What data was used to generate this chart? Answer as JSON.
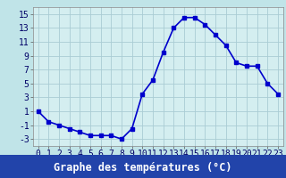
{
  "x": [
    0,
    1,
    2,
    3,
    4,
    5,
    6,
    7,
    8,
    9,
    10,
    11,
    12,
    13,
    14,
    15,
    16,
    17,
    18,
    19,
    20,
    21,
    22,
    23
  ],
  "y": [
    1,
    -0.5,
    -1,
    -1.5,
    -2,
    -2.5,
    -2.5,
    -2.5,
    -3,
    -1.5,
    3.5,
    5.5,
    9.5,
    13,
    14.5,
    14.5,
    13.5,
    12,
    10.5,
    8,
    7.5,
    7.5,
    5,
    3.5
  ],
  "xlabel": "Graphe des températures (°C)",
  "xlim_min": -0.5,
  "xlim_max": 23.5,
  "ylim": [
    -4,
    16
  ],
  "yticks": [
    -3,
    -1,
    1,
    3,
    5,
    7,
    9,
    11,
    13,
    15
  ],
  "xticks": [
    0,
    1,
    2,
    3,
    4,
    5,
    6,
    7,
    8,
    9,
    10,
    11,
    12,
    13,
    14,
    15,
    16,
    17,
    18,
    19,
    20,
    21,
    22,
    23
  ],
  "line_color": "#0000cc",
  "marker": "s",
  "marker_size": 2.5,
  "bg_plot": "#d4eef0",
  "bg_fig": "#c0e4e8",
  "grid_color": "#aaccd4",
  "xlabel_bg": "#2244aa",
  "xlabel_color": "#ffffff",
  "xlabel_fontsize": 8.5,
  "tick_fontsize": 7,
  "line_width": 1.2
}
